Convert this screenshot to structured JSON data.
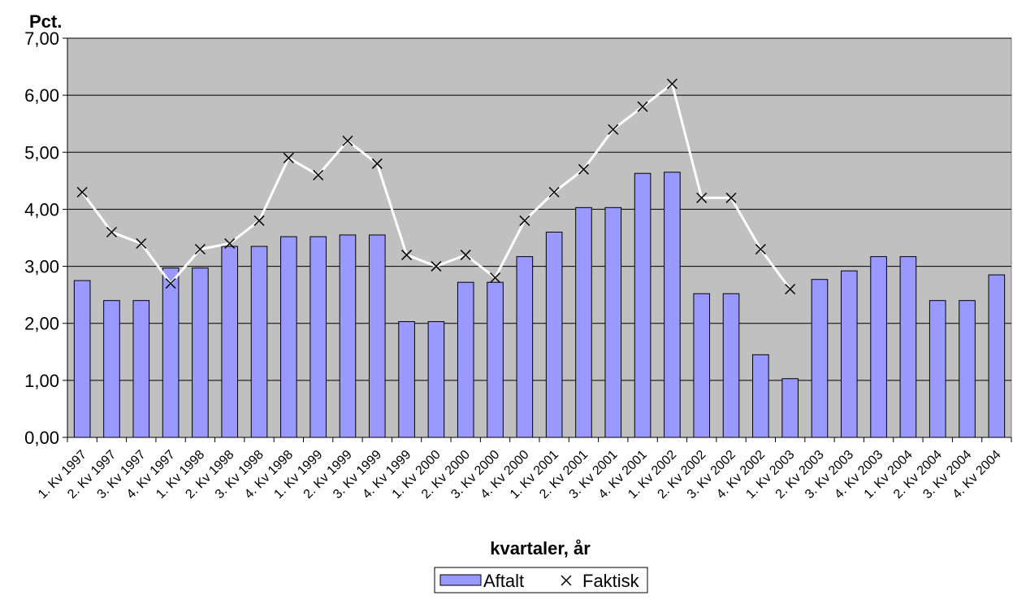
{
  "chart_data": {
    "type": "bar-line",
    "y_label": "Pct.",
    "x_label": "kvartaler, år",
    "categories": [
      "1. Kv 1997",
      "2. Kv 1997",
      "3. Kv 1997",
      "4. Kv 1997",
      "1. Kv 1998",
      "2. Kv 1998",
      "3. Kv 1998",
      "4. Kv 1998",
      "1. Kv 1999",
      "2. Kv 1999",
      "3. Kv 1999",
      "4. Kv 1999",
      "1. Kv 2000",
      "2. Kv 2000",
      "3. Kv 2000",
      "4. Kv 2000",
      "1. Kv 2001",
      "2. Kv 2001",
      "3. Kv 2001",
      "4. Kv 2001",
      "1. Kv 2002",
      "2. Kv 2002",
      "3. Kv 2002",
      "4. Kv 2002",
      "1. Kv 2003",
      "2. Kv 2003",
      "3. Kv 2003",
      "4. Kv 2003",
      "1. Kv 2004",
      "2. Kv 2004",
      "3. Kv 2004",
      "4. Kv 2004"
    ],
    "series": [
      {
        "name": "Aftalt",
        "type": "bar",
        "color": "#9999ff",
        "values": [
          2.75,
          2.4,
          2.4,
          2.97,
          2.97,
          3.35,
          3.35,
          3.52,
          3.52,
          3.55,
          3.55,
          2.03,
          2.03,
          2.72,
          2.72,
          3.17,
          3.6,
          4.03,
          4.03,
          4.63,
          4.65,
          2.52,
          2.52,
          1.45,
          1.03,
          2.77,
          2.92,
          3.17,
          3.17,
          2.4,
          2.4,
          2.85
        ]
      },
      {
        "name": "Faktisk",
        "type": "line",
        "color": "#ffffff",
        "marker_color": "#000000",
        "values": [
          4.3,
          3.6,
          3.4,
          2.7,
          3.3,
          3.4,
          3.8,
          4.9,
          4.6,
          5.2,
          4.8,
          3.2,
          3.0,
          3.2,
          2.8,
          3.8,
          4.3,
          4.7,
          5.4,
          5.8,
          6.2,
          4.2,
          4.2,
          3.3,
          2.6,
          null,
          null,
          null,
          null,
          null,
          null,
          null
        ]
      }
    ],
    "ylim": [
      0,
      7
    ],
    "yticks": [
      {
        "value": 0,
        "label": "0,00"
      },
      {
        "value": 1,
        "label": "1,00"
      },
      {
        "value": 2,
        "label": "2,00"
      },
      {
        "value": 3,
        "label": "3,00"
      },
      {
        "value": 4,
        "label": "4,00"
      },
      {
        "value": 5,
        "label": "5,00"
      },
      {
        "value": 6,
        "label": "6,00"
      },
      {
        "value": 7,
        "label": "7,00"
      }
    ],
    "grid": true,
    "plot_background": "#c0c0c0",
    "legend": "bottom"
  }
}
